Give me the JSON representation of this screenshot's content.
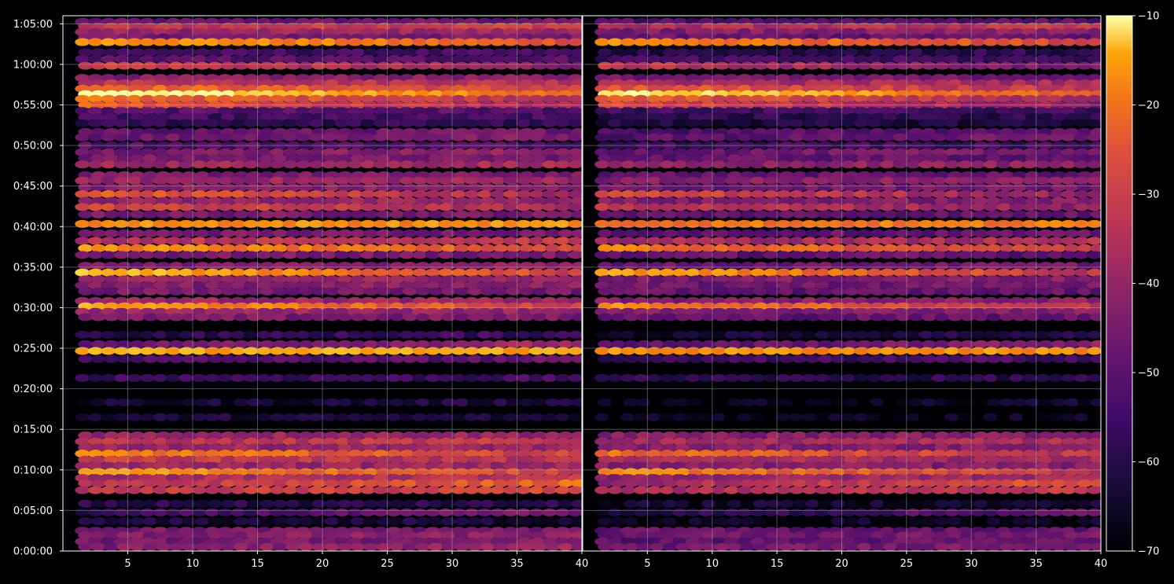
{
  "chart_data": {
    "type": "heatmap",
    "title": "",
    "xlabel": "",
    "ylabel": "",
    "panels": [
      {
        "name": "",
        "xlim": [
          1,
          40
        ],
        "xticks": [
          5,
          10,
          15,
          20,
          25,
          30,
          35,
          40
        ]
      },
      {
        "name": "",
        "xlim": [
          0,
          40
        ],
        "xticks": [
          5,
          10,
          15,
          20,
          25,
          30,
          35,
          40
        ]
      }
    ],
    "ylim_seconds": [
      0,
      3960
    ],
    "yticks": [
      {
        "label": "0:00:00",
        "seconds": 0
      },
      {
        "label": "0:05:00",
        "seconds": 300
      },
      {
        "label": "0:10:00",
        "seconds": 600
      },
      {
        "label": "0:15:00",
        "seconds": 900
      },
      {
        "label": "0:20:00",
        "seconds": 1200
      },
      {
        "label": "0:25:00",
        "seconds": 1500
      },
      {
        "label": "0:30:00",
        "seconds": 1800
      },
      {
        "label": "0:35:00",
        "seconds": 2100
      },
      {
        "label": "0:40:00",
        "seconds": 2400
      },
      {
        "label": "0:45:00",
        "seconds": 2700
      },
      {
        "label": "0:50:00",
        "seconds": 3000
      },
      {
        "label": "0:55:00",
        "seconds": 3300
      },
      {
        "label": "1:00:00",
        "seconds": 3600
      },
      {
        "label": "1:05:00",
        "seconds": 3900
      }
    ],
    "grid": true,
    "colormap": "inferno",
    "colorbar": {
      "range": [
        -70,
        -10
      ],
      "ticks": [
        -10,
        -20,
        -30,
        -40,
        -50,
        -60,
        -70
      ],
      "tick_labels": [
        "−10",
        "−20",
        "−30",
        "−40",
        "−50",
        "−60",
        "−70"
      ]
    },
    "bands": [
      {
        "y_seconds": 3915,
        "level": -52,
        "trend": 0.05
      },
      {
        "y_seconds": 3880,
        "level": -38,
        "trend": 0.1
      },
      {
        "y_seconds": 3840,
        "level": -45,
        "trend": 0.05
      },
      {
        "y_seconds": 3800,
        "level": -50,
        "trend": 0
      },
      {
        "y_seconds": 3765,
        "level": -28,
        "trend": -0.3
      },
      {
        "y_seconds": 3690,
        "level": -58,
        "trend": 0
      },
      {
        "y_seconds": 3640,
        "level": -55,
        "trend": 0
      },
      {
        "y_seconds": 3590,
        "level": -42,
        "trend": -0.3
      },
      {
        "y_seconds": 3500,
        "level": -48,
        "trend": 0
      },
      {
        "y_seconds": 3460,
        "level": -40,
        "trend": 0
      },
      {
        "y_seconds": 3420,
        "level": -33,
        "trend": -0.2
      },
      {
        "y_seconds": 3380,
        "level": -20,
        "trend": -0.6
      },
      {
        "y_seconds": 3345,
        "level": -35,
        "trend": -0.3
      },
      {
        "y_seconds": 3300,
        "level": -38,
        "trend": -0.3
      },
      {
        "y_seconds": 3255,
        "level": -55,
        "trend": 0
      },
      {
        "y_seconds": 3210,
        "level": -58,
        "trend": 0
      },
      {
        "y_seconds": 3165,
        "level": -60,
        "trend": 0
      },
      {
        "y_seconds": 3100,
        "level": -52,
        "trend": 0.1
      },
      {
        "y_seconds": 3060,
        "level": -50,
        "trend": 0.1
      },
      {
        "y_seconds": 3000,
        "level": -55,
        "trend": 0
      },
      {
        "y_seconds": 2950,
        "level": -48,
        "trend": 0.1
      },
      {
        "y_seconds": 2905,
        "level": -50,
        "trend": 0
      },
      {
        "y_seconds": 2860,
        "level": -44,
        "trend": 0.05
      },
      {
        "y_seconds": 2780,
        "level": -50,
        "trend": 0
      },
      {
        "y_seconds": 2740,
        "level": -45,
        "trend": 0.05
      },
      {
        "y_seconds": 2690,
        "level": -48,
        "trend": 0
      },
      {
        "y_seconds": 2640,
        "level": -38,
        "trend": -0.3
      },
      {
        "y_seconds": 2590,
        "level": -46,
        "trend": 0
      },
      {
        "y_seconds": 2545,
        "level": -40,
        "trend": -0.2
      },
      {
        "y_seconds": 2490,
        "level": -50,
        "trend": 0
      },
      {
        "y_seconds": 2420,
        "level": -25,
        "trend": 0
      },
      {
        "y_seconds": 2350,
        "level": -50,
        "trend": 0
      },
      {
        "y_seconds": 2295,
        "level": -40,
        "trend": 0.05
      },
      {
        "y_seconds": 2240,
        "level": -30,
        "trend": -0.3
      },
      {
        "y_seconds": 2190,
        "level": -50,
        "trend": 0
      },
      {
        "y_seconds": 2110,
        "level": -48,
        "trend": 0.05
      },
      {
        "y_seconds": 2060,
        "level": -28,
        "trend": -0.5
      },
      {
        "y_seconds": 2010,
        "level": -46,
        "trend": 0.05
      },
      {
        "y_seconds": 1965,
        "level": -48,
        "trend": 0.05
      },
      {
        "y_seconds": 1920,
        "level": -50,
        "trend": 0
      },
      {
        "y_seconds": 1850,
        "level": -45,
        "trend": 0
      },
      {
        "y_seconds": 1810,
        "level": -30,
        "trend": -0.4
      },
      {
        "y_seconds": 1770,
        "level": -45,
        "trend": 0
      },
      {
        "y_seconds": 1730,
        "level": -50,
        "trend": 0
      },
      {
        "y_seconds": 1600,
        "level": -60,
        "trend": 0.1
      },
      {
        "y_seconds": 1530,
        "level": -48,
        "trend": 0.2
      },
      {
        "y_seconds": 1480,
        "level": -22,
        "trend": 0
      },
      {
        "y_seconds": 1420,
        "level": -55,
        "trend": 0.1
      },
      {
        "y_seconds": 1280,
        "level": -58,
        "trend": 0
      },
      {
        "y_seconds": 1100,
        "level": -64,
        "trend": 0.1
      },
      {
        "y_seconds": 990,
        "level": -64,
        "trend": 0
      },
      {
        "y_seconds": 855,
        "level": -45,
        "trend": 0
      },
      {
        "y_seconds": 810,
        "level": -40,
        "trend": 0.05
      },
      {
        "y_seconds": 765,
        "level": -45,
        "trend": 0
      },
      {
        "y_seconds": 720,
        "level": -32,
        "trend": -0.3
      },
      {
        "y_seconds": 675,
        "level": -40,
        "trend": -0.1
      },
      {
        "y_seconds": 630,
        "level": -45,
        "trend": 0
      },
      {
        "y_seconds": 585,
        "level": -30,
        "trend": -0.4
      },
      {
        "y_seconds": 540,
        "level": -42,
        "trend": 0.1
      },
      {
        "y_seconds": 500,
        "level": -36,
        "trend": 0.3
      },
      {
        "y_seconds": 450,
        "level": -38,
        "trend": 0.1
      },
      {
        "y_seconds": 350,
        "level": -62,
        "trend": 0
      },
      {
        "y_seconds": 285,
        "level": -55,
        "trend": 0.3
      },
      {
        "y_seconds": 220,
        "level": -64,
        "trend": 0
      },
      {
        "y_seconds": 150,
        "level": -50,
        "trend": 0
      },
      {
        "y_seconds": 115,
        "level": -48,
        "trend": 0.05
      },
      {
        "y_seconds": 70,
        "level": -50,
        "trend": 0.05
      },
      {
        "y_seconds": 30,
        "level": -47,
        "trend": 0.1
      }
    ]
  }
}
